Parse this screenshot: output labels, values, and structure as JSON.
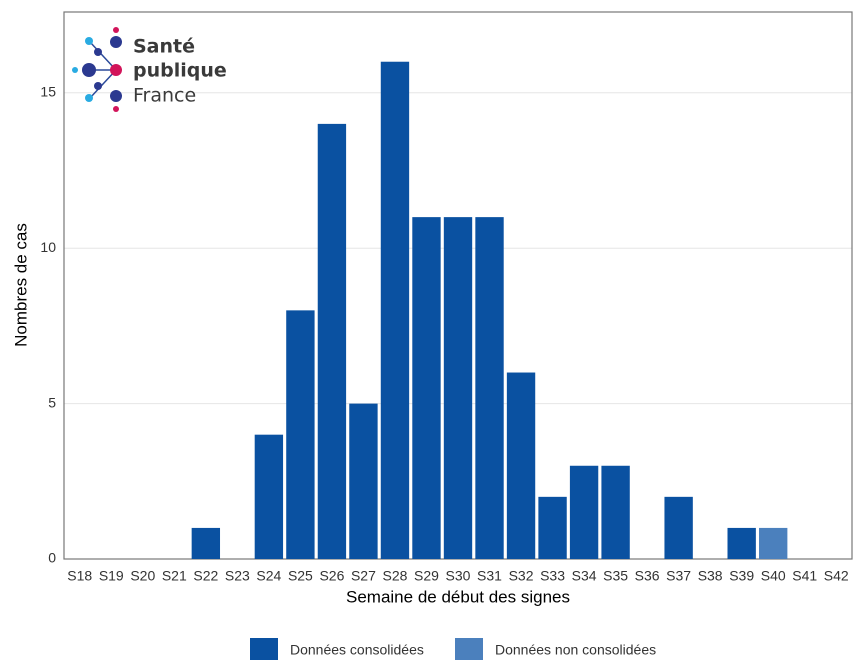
{
  "chart_data": {
    "type": "stacked-bar",
    "logo": [
      "Santé",
      "publique",
      "France"
    ],
    "x_label": "Semaine de début des signes",
    "y_label": "Nombres de cas",
    "categories": [
      "S18",
      "S19",
      "S20",
      "S21",
      "S22",
      "S23",
      "S24",
      "S25",
      "S26",
      "S27",
      "S28",
      "S29",
      "S30",
      "S31",
      "S32",
      "S33",
      "S34",
      "S35",
      "S36",
      "S37",
      "S38",
      "S39",
      "S40",
      "S41",
      "S42"
    ],
    "series": [
      {
        "name": "Données consolidées",
        "color": "#0a51a1",
        "values": [
          0,
          0,
          0,
          0,
          1,
          0,
          4,
          8,
          14,
          5,
          16,
          11,
          11,
          11,
          6,
          2,
          3,
          3,
          0,
          2,
          0,
          1,
          0,
          0,
          0
        ]
      },
      {
        "name": "Données non consolidées",
        "color": "#4b80bd",
        "values": [
          0,
          0,
          0,
          0,
          0,
          0,
          0,
          0,
          0,
          0,
          0,
          0,
          0,
          0,
          0,
          0,
          0,
          0,
          0,
          0,
          0,
          0,
          1,
          0,
          0
        ]
      }
    ],
    "ylim": [
      0,
      17.6
    ],
    "yticks": [
      0,
      5,
      10,
      15
    ],
    "grid": true
  }
}
